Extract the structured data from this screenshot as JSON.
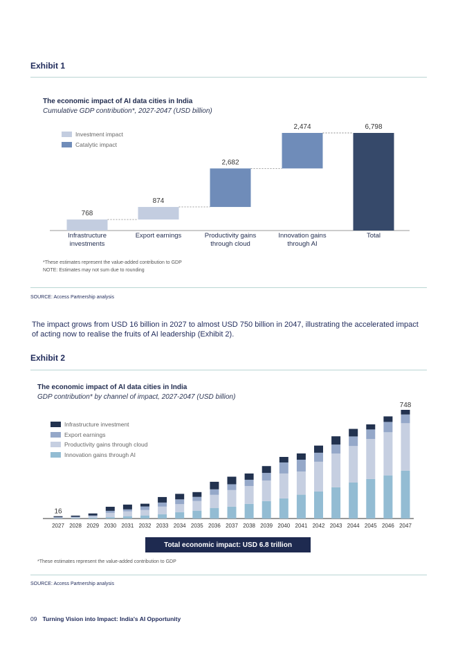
{
  "exhibit1": {
    "label": "Exhibit 1",
    "source": "SOURCE: Access Partnership analysis",
    "notes": [
      "*These estimates represent the value-added contribution to GDP",
      "NOTE: Estimates may not sum due to rounding"
    ]
  },
  "exhibit2": {
    "label": "Exhibit 2",
    "source": "SOURCE: Access Partnership analysis",
    "notes": [
      "*These estimates represent the value-added contribution to GDP"
    ],
    "banner": "Total economic impact: USD 6.8 trillion"
  },
  "paragraph": "The impact grows from USD 16 billion in 2027 to almost USD 750 billion in 2047, illustrating the accelerated impact of acting now to realise the fruits of AI leadership (Exhibit 2).",
  "footer": {
    "page": "09",
    "title": "Turning Vision into Impact: India's AI Opportunity"
  },
  "chart_data": [
    {
      "type": "bar",
      "subtype": "waterfall",
      "title": "The economic impact of AI data cities in India",
      "subtitle": "Cumulative GDP contribution*, 2027-2047 (USD billion)",
      "categories": [
        "Infrastructure investments",
        "Export earnings",
        "Productivity gains through cloud",
        "Innovation gains through AI",
        "Total"
      ],
      "values": [
        768,
        874,
        2682,
        2474,
        6798
      ],
      "data_labels": [
        "768",
        "874",
        "2,682",
        "2,474",
        "6,798"
      ],
      "impact_type": [
        "Investment impact",
        "Investment impact",
        "Catalytic impact",
        "Catalytic impact",
        "Total"
      ],
      "legend": [
        {
          "name": "Investment impact",
          "color": "#c3cde0"
        },
        {
          "name": "Catalytic impact",
          "color": "#6f8cb9"
        }
      ],
      "total_color": "#36496a",
      "legend_position": "top-left",
      "ylim": [
        0,
        6798
      ],
      "grid": false
    },
    {
      "type": "bar",
      "subtype": "stacked",
      "title": "The economic impact of AI data cities in India",
      "subtitle": "GDP contribution* by channel of impact, 2027-2047 (USD billion)",
      "categories": [
        "2027",
        "2028",
        "2029",
        "2030",
        "2031",
        "2032",
        "2033",
        "2034",
        "2035",
        "2036",
        "2037",
        "2038",
        "2039",
        "2040",
        "2041",
        "2042",
        "2043",
        "2044",
        "2045",
        "2046",
        "2047"
      ],
      "series": [
        {
          "name": "Innovation gains through AI",
          "color": "#93bcd3",
          "values": [
            2,
            3,
            5,
            9,
            16,
            21,
            30,
            44,
            54,
            73,
            82,
            101,
            120,
            139,
            164,
            186,
            215,
            248,
            272,
            297,
            329
          ]
        },
        {
          "name": "Productivity gains through cloud",
          "color": "#c6cfe1",
          "values": [
            4,
            5,
            11,
            30,
            33,
            38,
            52,
            55,
            67,
            90,
            114,
            123,
            142,
            171,
            160,
            205,
            232,
            251,
            275,
            297,
            327
          ]
        },
        {
          "name": "Export earnings",
          "color": "#95a8c9",
          "values": [
            4,
            4,
            5,
            14,
            14,
            24,
            28,
            33,
            28,
            38,
            40,
            43,
            52,
            76,
            81,
            62,
            62,
            66,
            66,
            71,
            60
          ]
        },
        {
          "name": "Infrastructure investment",
          "color": "#22324f",
          "values": [
            6,
            8,
            14,
            28,
            33,
            19,
            38,
            38,
            33,
            52,
            52,
            43,
            47,
            38,
            43,
            49,
            57,
            52,
            35,
            38,
            32
          ]
        }
      ],
      "legend_order": [
        "Infrastructure investment",
        "Export earnings",
        "Productivity gains through cloud",
        "Innovation gains through AI"
      ],
      "data_labels": {
        "2027": "16",
        "2047": "748"
      },
      "legend_position": "top-left",
      "ylim": [
        0,
        748
      ],
      "grid": false
    }
  ]
}
